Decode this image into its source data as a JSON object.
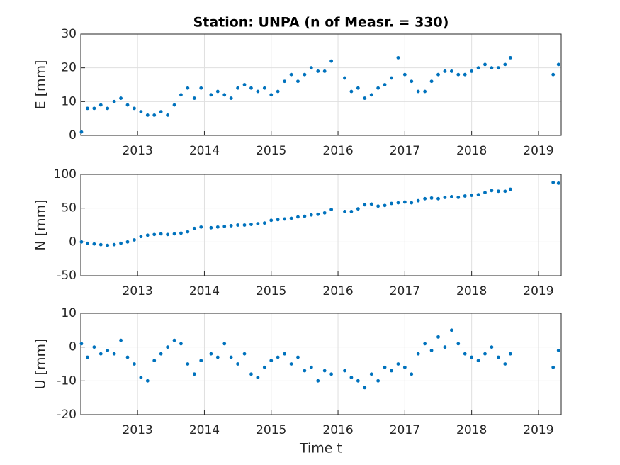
{
  "chart_data": [
    {
      "type": "scatter",
      "title": "Station: UNPA (n of Measr. = 330)",
      "ylabel": "E [mm]",
      "color": "#0072bd",
      "grid": true,
      "x": [
        2012.16,
        2012.25,
        2012.35,
        2012.45,
        2012.55,
        2012.65,
        2012.75,
        2012.85,
        2012.95,
        2013.05,
        2013.15,
        2013.25,
        2013.35,
        2013.45,
        2013.55,
        2013.65,
        2013.75,
        2013.85,
        2013.95,
        2014.1,
        2014.2,
        2014.3,
        2014.4,
        2014.5,
        2014.6,
        2014.7,
        2014.8,
        2014.9,
        2015.0,
        2015.1,
        2015.2,
        2015.3,
        2015.4,
        2015.5,
        2015.6,
        2015.7,
        2015.8,
        2015.9,
        2016.1,
        2016.2,
        2016.3,
        2016.4,
        2016.5,
        2016.6,
        2016.7,
        2016.8,
        2016.9,
        2017.0,
        2017.1,
        2017.2,
        2017.3,
        2017.4,
        2017.5,
        2017.6,
        2017.7,
        2017.8,
        2017.9,
        2018.0,
        2018.1,
        2018.2,
        2018.3,
        2018.4,
        2018.5,
        2018.58,
        2019.22,
        2019.3
      ],
      "values": [
        1,
        8,
        8,
        9,
        8,
        10,
        11,
        9,
        8,
        7,
        6,
        6,
        7,
        6,
        9,
        12,
        14,
        11,
        14,
        12,
        13,
        12,
        11,
        14,
        15,
        14,
        13,
        14,
        12,
        13,
        16,
        18,
        16,
        18,
        20,
        19,
        19,
        22,
        17,
        13,
        14,
        11,
        12,
        14,
        15,
        17,
        23,
        18,
        16,
        13,
        13,
        16,
        18,
        19,
        19,
        18,
        18,
        19,
        20,
        21,
        20,
        20,
        21,
        23,
        18,
        21
      ],
      "xlim": [
        2012.15,
        2019.34
      ],
      "xticks": [
        2013,
        2014,
        2015,
        2016,
        2017,
        2018,
        2019
      ],
      "ylim": [
        0,
        30
      ],
      "yticks": [
        0,
        10,
        20,
        30
      ]
    },
    {
      "type": "scatter",
      "ylabel": "N [mm]",
      "color": "#0072bd",
      "grid": true,
      "x": [
        2012.16,
        2012.25,
        2012.35,
        2012.45,
        2012.55,
        2012.65,
        2012.75,
        2012.85,
        2012.95,
        2013.05,
        2013.15,
        2013.25,
        2013.35,
        2013.45,
        2013.55,
        2013.65,
        2013.75,
        2013.85,
        2013.95,
        2014.1,
        2014.2,
        2014.3,
        2014.4,
        2014.5,
        2014.6,
        2014.7,
        2014.8,
        2014.9,
        2015.0,
        2015.1,
        2015.2,
        2015.3,
        2015.4,
        2015.5,
        2015.6,
        2015.7,
        2015.8,
        2015.9,
        2016.1,
        2016.2,
        2016.3,
        2016.4,
        2016.5,
        2016.6,
        2016.7,
        2016.8,
        2016.9,
        2017.0,
        2017.1,
        2017.2,
        2017.3,
        2017.4,
        2017.5,
        2017.6,
        2017.7,
        2017.8,
        2017.9,
        2018.0,
        2018.1,
        2018.2,
        2018.3,
        2018.4,
        2018.5,
        2018.58,
        2019.22,
        2019.3
      ],
      "values": [
        0,
        -2,
        -3,
        -4,
        -5,
        -4,
        -2,
        0,
        3,
        8,
        10,
        11,
        12,
        11,
        12,
        13,
        15,
        20,
        22,
        21,
        22,
        23,
        24,
        25,
        25,
        26,
        27,
        28,
        32,
        33,
        34,
        35,
        37,
        38,
        40,
        41,
        43,
        48,
        45,
        45,
        49,
        55,
        56,
        53,
        54,
        57,
        58,
        59,
        58,
        61,
        64,
        65,
        64,
        66,
        67,
        66,
        68,
        69,
        70,
        73,
        76,
        75,
        75,
        78,
        88,
        87
      ],
      "xlim": [
        2012.15,
        2019.34
      ],
      "xticks": [
        2013,
        2014,
        2015,
        2016,
        2017,
        2018,
        2019
      ],
      "ylim": [
        -50,
        100
      ],
      "yticks": [
        -50,
        0,
        50,
        100
      ]
    },
    {
      "type": "scatter",
      "ylabel": "U [mm]",
      "xlabel": "Time t",
      "color": "#0072bd",
      "grid": true,
      "x": [
        2012.16,
        2012.25,
        2012.35,
        2012.45,
        2012.55,
        2012.65,
        2012.75,
        2012.85,
        2012.95,
        2013.05,
        2013.15,
        2013.25,
        2013.35,
        2013.45,
        2013.55,
        2013.65,
        2013.75,
        2013.85,
        2013.95,
        2014.1,
        2014.2,
        2014.3,
        2014.4,
        2014.5,
        2014.6,
        2014.7,
        2014.8,
        2014.9,
        2015.0,
        2015.1,
        2015.2,
        2015.3,
        2015.4,
        2015.5,
        2015.6,
        2015.7,
        2015.8,
        2015.9,
        2016.1,
        2016.2,
        2016.3,
        2016.4,
        2016.5,
        2016.6,
        2016.7,
        2016.8,
        2016.9,
        2017.0,
        2017.1,
        2017.2,
        2017.3,
        2017.4,
        2017.5,
        2017.6,
        2017.7,
        2017.8,
        2017.9,
        2018.0,
        2018.1,
        2018.2,
        2018.3,
        2018.4,
        2018.5,
        2018.58,
        2019.22,
        2019.3
      ],
      "values": [
        1,
        -3,
        0,
        -2,
        -1,
        -2,
        2,
        -3,
        -5,
        -9,
        -10,
        -4,
        -2,
        0,
        2,
        1,
        -5,
        -8,
        -4,
        -2,
        -3,
        1,
        -3,
        -5,
        -2,
        -8,
        -9,
        -6,
        -4,
        -3,
        -2,
        -5,
        -3,
        -7,
        -6,
        -10,
        -7,
        -8,
        -7,
        -9,
        -10,
        -12,
        -8,
        -10,
        -6,
        -7,
        -5,
        -6,
        -8,
        -2,
        1,
        -1,
        3,
        0,
        5,
        1,
        -2,
        -3,
        -4,
        -2,
        0,
        -3,
        -5,
        -2,
        -6,
        -1
      ],
      "xlim": [
        2012.15,
        2019.34
      ],
      "xticks": [
        2013,
        2014,
        2015,
        2016,
        2017,
        2018,
        2019
      ],
      "ylim": [
        -20,
        10
      ],
      "yticks": [
        -20,
        -10,
        0,
        10
      ]
    }
  ]
}
